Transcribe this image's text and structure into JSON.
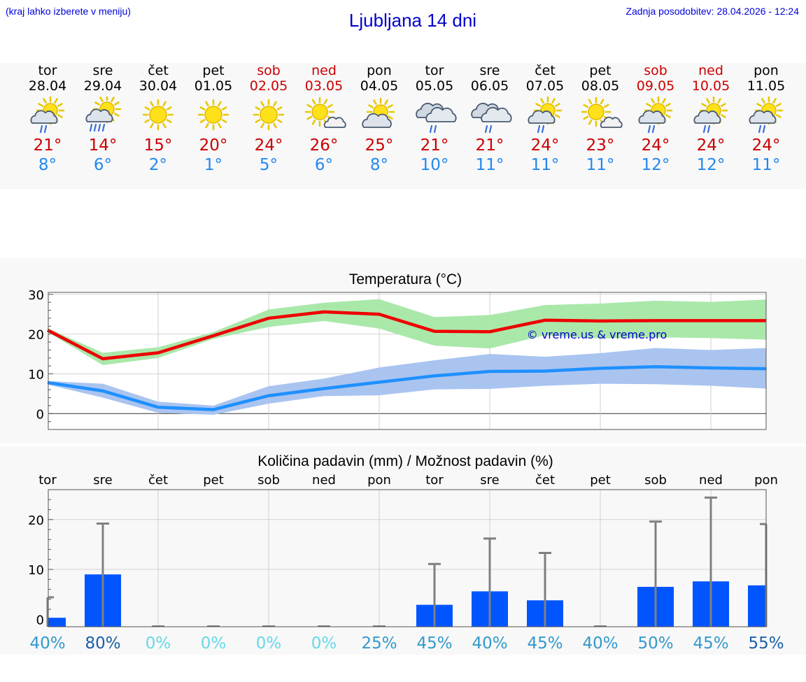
{
  "header": {
    "hint": "(kraj lahko izberete v meniju)",
    "title": "Ljubljana 14 dni",
    "updated": "Zadnja posodobitev: 28.04.2026 - 12:24"
  },
  "colors": {
    "link_blue": "#0000dd",
    "max_temp": "#cc0000",
    "min_temp": "#2288ee",
    "max_band": "#aae8aa",
    "min_band": "#aac4f0",
    "max_line": "#ee0000",
    "min_line": "#1e90ff",
    "rain_bar": "#0055ff",
    "rain_whisker": "#808080"
  },
  "days": [
    {
      "name": "tor",
      "date": "28.04",
      "weekend": false,
      "icon": "sun-cloud-rain-icon",
      "max": "21°",
      "min": "8°"
    },
    {
      "name": "sre",
      "date": "29.04",
      "weekend": false,
      "icon": "sun-cloud-heavy-rain-icon",
      "max": "14°",
      "min": "6°"
    },
    {
      "name": "čet",
      "date": "30.04",
      "weekend": false,
      "icon": "sun-icon",
      "max": "15°",
      "min": "2°"
    },
    {
      "name": "pet",
      "date": "01.05",
      "weekend": false,
      "icon": "sun-icon",
      "max": "20°",
      "min": "1°"
    },
    {
      "name": "sob",
      "date": "02.05",
      "weekend": true,
      "icon": "sun-icon",
      "max": "24°",
      "min": "5°"
    },
    {
      "name": "ned",
      "date": "03.05",
      "weekend": true,
      "icon": "sun-small-cloud-icon",
      "max": "26°",
      "min": "6°"
    },
    {
      "name": "pon",
      "date": "04.05",
      "weekend": false,
      "icon": "sun-behind-cloud-icon",
      "max": "25°",
      "min": "8°"
    },
    {
      "name": "tor",
      "date": "05.05",
      "weekend": false,
      "icon": "cloud-rain-icon",
      "max": "21°",
      "min": "10°"
    },
    {
      "name": "sre",
      "date": "06.05",
      "weekend": false,
      "icon": "cloud-rain-icon",
      "max": "21°",
      "min": "11°"
    },
    {
      "name": "čet",
      "date": "07.05",
      "weekend": false,
      "icon": "sun-cloud-rain-icon",
      "max": "24°",
      "min": "11°"
    },
    {
      "name": "pet",
      "date": "08.05",
      "weekend": false,
      "icon": "sun-small-cloud-icon",
      "max": "23°",
      "min": "11°"
    },
    {
      "name": "sob",
      "date": "09.05",
      "weekend": true,
      "icon": "sun-cloud-rain-icon",
      "max": "24°",
      "min": "12°"
    },
    {
      "name": "ned",
      "date": "10.05",
      "weekend": true,
      "icon": "sun-cloud-rain-icon",
      "max": "24°",
      "min": "12°"
    },
    {
      "name": "pon",
      "date": "11.05",
      "weekend": false,
      "icon": "sun-cloud-rain-icon",
      "max": "24°",
      "min": "11°"
    }
  ],
  "chart_data": [
    {
      "type": "line",
      "title": "Temperatura (°C)",
      "watermark": "© vreme.us & vreme.pro",
      "x": [
        "28.04",
        "29.04",
        "30.04",
        "01.05",
        "02.05",
        "03.05",
        "04.05",
        "05.05",
        "06.05",
        "07.05",
        "08.05",
        "09.05",
        "10.05",
        "11.05"
      ],
      "yticks": [
        "30",
        "20",
        "10",
        "0"
      ],
      "ylim": [
        -4,
        30.5
      ],
      "grid": true,
      "series": [
        {
          "values": [
            21,
            13.8,
            15.3,
            19.6,
            24,
            25.6,
            25,
            20.7,
            20.6,
            23.5,
            23.3,
            23.4,
            23.4,
            23.4
          ],
          "band_high": [
            21.5,
            15.3,
            16.7,
            20.5,
            26.2,
            27.9,
            28.8,
            24.3,
            24.8,
            27.3,
            27.7,
            28.4,
            28.1,
            28.7
          ],
          "band_low": [
            20.5,
            12.2,
            14,
            18.8,
            21.8,
            23.3,
            21.4,
            17.1,
            16.4,
            19.7,
            18.9,
            19.2,
            19,
            18.6
          ]
        },
        {
          "values": [
            7.8,
            5.7,
            1.6,
            1,
            4.5,
            6.3,
            7.9,
            9.5,
            10.6,
            10.7,
            11.4,
            11.8,
            11.5,
            11.3
          ],
          "band_high": [
            8.2,
            7.5,
            3,
            2,
            6.9,
            8.8,
            11.6,
            13.4,
            15,
            14.3,
            15.2,
            16.5,
            16,
            16.5
          ],
          "band_low": [
            7.3,
            4,
            0.2,
            -0.3,
            2.5,
            4.4,
            4.6,
            6.1,
            6.2,
            7,
            7.5,
            7.4,
            7,
            6.3
          ]
        }
      ]
    },
    {
      "type": "bar",
      "title": "Količina padavin (mm) / Možnost padavin (%)",
      "categories": [
        "tor",
        "sre",
        "čet",
        "pet",
        "sob",
        "ned",
        "pon",
        "tor",
        "sre",
        "čet",
        "pet",
        "sob",
        "ned",
        "pon"
      ],
      "yticks": [
        "20",
        "10",
        "0"
      ],
      "ylim": [
        -1.5,
        26
      ],
      "grid": true,
      "values": [
        0.3,
        9,
        0,
        0,
        0,
        0,
        0,
        2.9,
        5.6,
        3.8,
        0,
        6.5,
        7.6,
        6.8
      ],
      "error_high": [
        4.4,
        19.2,
        0,
        0,
        0,
        0,
        0,
        11.1,
        16.2,
        13.3,
        0,
        19.6,
        24.4,
        19.1
      ],
      "probability": [
        "40%",
        "80%",
        "0%",
        "0%",
        "0%",
        "0%",
        "25%",
        "45%",
        "40%",
        "45%",
        "40%",
        "50%",
        "45%",
        "55%"
      ],
      "probability_colors": [
        "#3399cc",
        "#1a5fa8",
        "#66d8e8",
        "#66d8e8",
        "#66d8e8",
        "#66d8e8",
        "#3399cc",
        "#3399cc",
        "#3399cc",
        "#3399cc",
        "#3399cc",
        "#3399cc",
        "#3399cc",
        "#1a5fa8"
      ]
    }
  ]
}
